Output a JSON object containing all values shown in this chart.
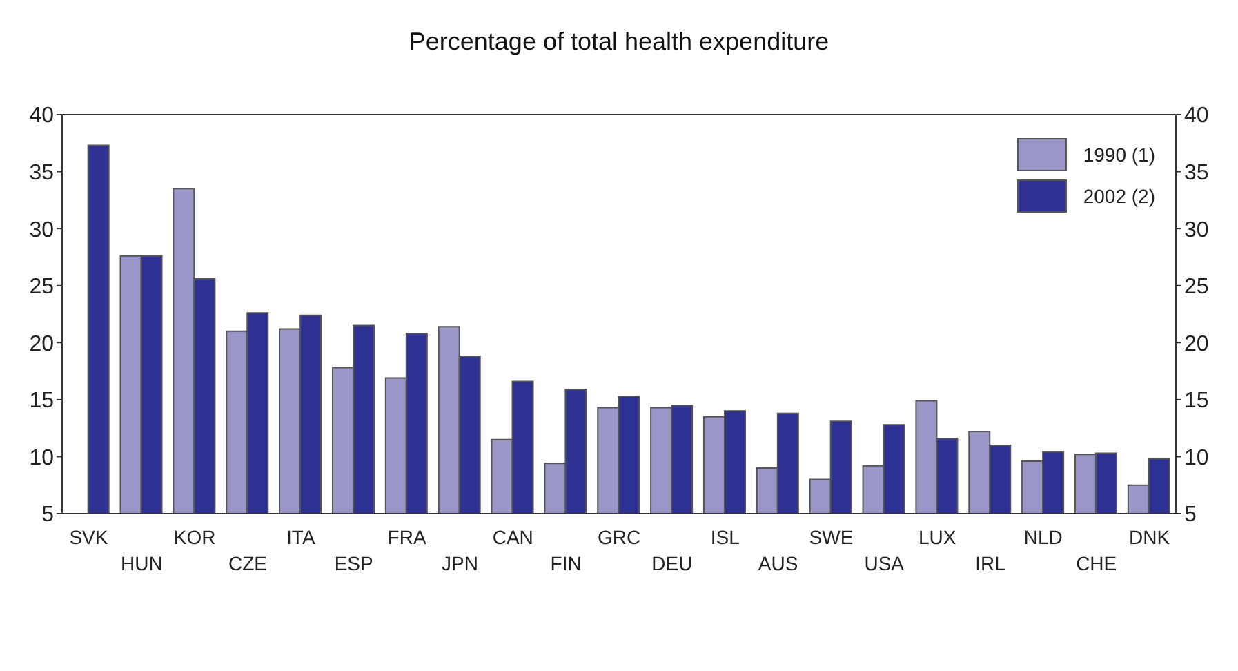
{
  "chart_data": {
    "type": "bar",
    "title": "Percentage of total health expenditure",
    "categories": [
      "SVK",
      "HUN",
      "KOR",
      "CZE",
      "ITA",
      "ESP",
      "FRA",
      "JPN",
      "CAN",
      "FIN",
      "GRC",
      "DEU",
      "ISL",
      "AUS",
      "SWE",
      "USA",
      "LUX",
      "IRL",
      "NLD",
      "CHE",
      "DNK"
    ],
    "series": [
      {
        "name": "1990 (1)",
        "color": "#9a97c8",
        "values": [
          null,
          27.6,
          33.5,
          21.0,
          21.2,
          17.8,
          16.9,
          21.4,
          11.5,
          9.4,
          14.3,
          14.3,
          13.5,
          9.0,
          8.0,
          9.2,
          14.9,
          12.2,
          9.6,
          10.2,
          7.5
        ]
      },
      {
        "name": "2002 (2)",
        "color": "#2e3192",
        "values": [
          37.3,
          27.6,
          25.6,
          22.6,
          22.4,
          21.5,
          20.8,
          18.8,
          16.6,
          15.9,
          15.3,
          14.5,
          14.0,
          13.8,
          13.1,
          12.8,
          11.6,
          11.0,
          10.4,
          10.3,
          9.8
        ]
      }
    ],
    "ylim": [
      5,
      40
    ],
    "yticks": [
      5,
      10,
      15,
      20,
      25,
      30,
      35,
      40
    ],
    "y2lim": [
      5,
      40
    ],
    "y2ticks": [
      5,
      10,
      15,
      20,
      25,
      30,
      35,
      40
    ],
    "grid": false,
    "legend": "top right"
  }
}
